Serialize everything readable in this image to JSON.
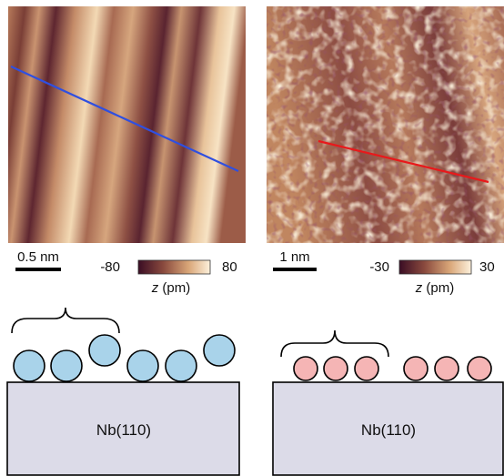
{
  "panels": [
    {
      "scale_bar": "0.5 nm",
      "colorbar": {
        "min": -80,
        "max": 80,
        "label_symbol": "z",
        "label_unit": "(pm)"
      },
      "substrate": "Nb(110)"
    },
    {
      "scale_bar": "1 nm",
      "colorbar": {
        "min": -30,
        "max": 30,
        "label_symbol": "z",
        "label_unit": "(pm)"
      },
      "substrate": "Nb(110)"
    }
  ]
}
